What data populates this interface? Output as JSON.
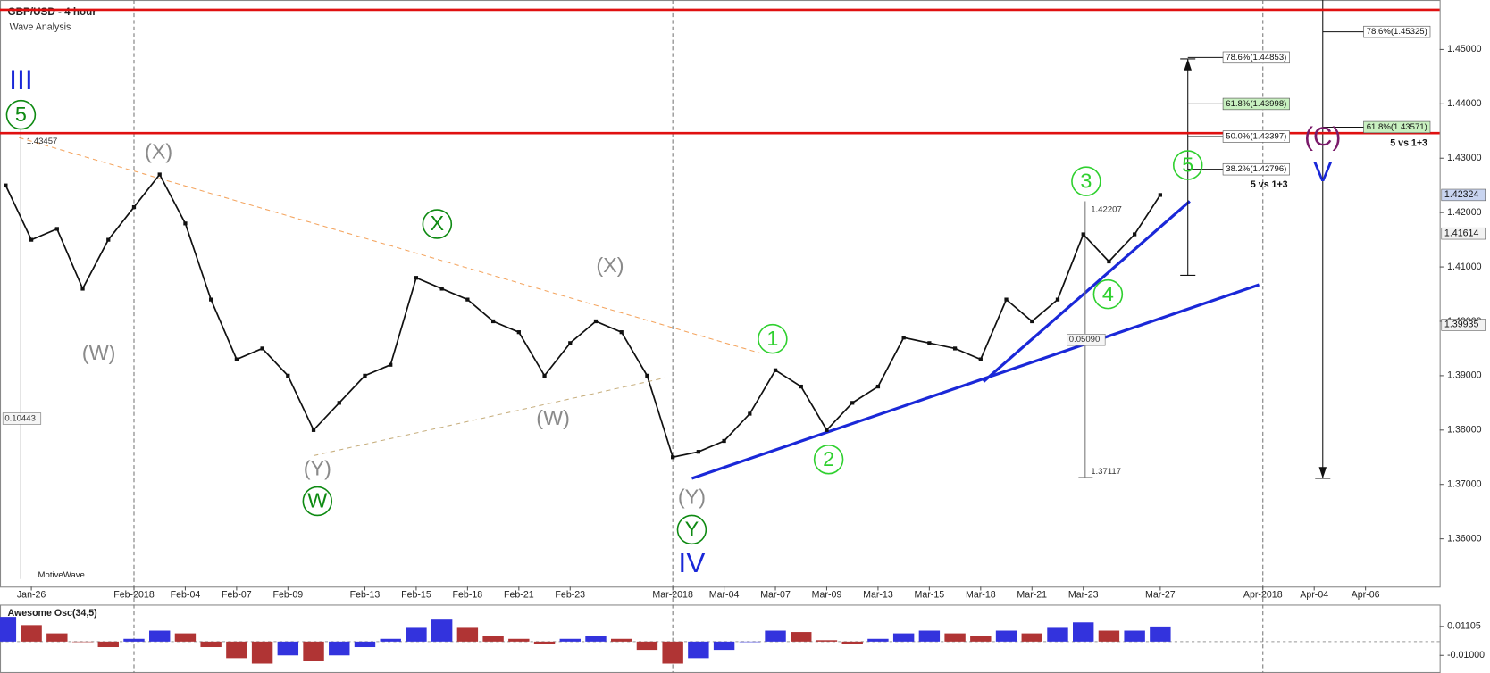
{
  "title": "GBP/USD - 4 hour",
  "subtitle": "Wave Analysis",
  "footer": "MotiveWave",
  "chart_data": {
    "type": "line",
    "color": "#111111",
    "categories": [
      null,
      "Jan-26",
      null,
      null,
      null,
      "Feb-2018",
      null,
      "Feb-04",
      null,
      "Feb-07",
      null,
      "Feb-09",
      null,
      null,
      "Feb-13",
      null,
      "Feb-15",
      null,
      "Feb-18",
      null,
      "Feb-21",
      null,
      "Feb-23",
      null,
      null,
      null,
      "Mar-2018",
      null,
      "Mar-04",
      null,
      "Mar-07",
      null,
      "Mar-09",
      null,
      "Mar-13",
      null,
      "Mar-15",
      null,
      "Mar-18",
      null,
      "Mar-21",
      null,
      "Mar-23",
      null,
      null,
      "Mar-27",
      null,
      null,
      null,
      "Apr-2018",
      null,
      "Apr-04",
      null,
      "Apr-06",
      null,
      null
    ],
    "values": [
      1.425,
      1.415,
      1.417,
      1.406,
      1.415,
      1.421,
      1.427,
      1.418,
      1.404,
      1.393,
      1.395,
      1.39,
      1.38,
      1.385,
      1.39,
      1.392,
      1.408,
      1.406,
      1.404,
      1.4,
      1.398,
      1.39,
      1.396,
      1.4,
      1.398,
      1.39,
      1.375,
      1.376,
      1.378,
      1.383,
      1.391,
      1.388,
      1.38,
      1.385,
      1.388,
      1.397,
      1.396,
      1.395,
      1.393,
      1.404,
      1.4,
      1.404,
      1.416,
      1.411,
      1.416,
      1.42324,
      null,
      null,
      null,
      null,
      null,
      null,
      null,
      null,
      null,
      null
    ],
    "ylim": [
      1.3512,
      1.4591
    ],
    "yticks": [
      {
        "value": 1.36,
        "label": "1.36000"
      },
      {
        "value": 1.37,
        "label": "1.37000"
      },
      {
        "value": 1.38,
        "label": "1.38000"
      },
      {
        "value": 1.39,
        "label": "1.39000"
      },
      {
        "value": 1.4,
        "label": "1.40000"
      },
      {
        "value": 1.41,
        "label": "1.41000"
      },
      {
        "value": 1.42,
        "label": "1.42000"
      },
      {
        "value": 1.43,
        "label": "1.43000"
      },
      {
        "value": 1.44,
        "label": "1.44000"
      },
      {
        "value": 1.45,
        "label": "1.45000"
      }
    ],
    "hlines": [
      {
        "value": 1.4573,
        "color": "#e01010"
      },
      {
        "value": 1.4346,
        "color": "#e01010"
      }
    ],
    "last_price": 1.42324,
    "price_markers": [
      1.41614,
      1.39935
    ],
    "fib_levels": [
      {
        "value": 1.44853,
        "label": "78.6%(1.44853)"
      },
      {
        "value": 1.43998,
        "label": "61.8%(1.43998)"
      },
      {
        "value": 1.43397,
        "label": "50.0%(1.43397)"
      },
      {
        "value": 1.42796,
        "label": "38.2%(1.42796)"
      }
    ],
    "fib_levels_2": [
      {
        "value": 1.45325,
        "label": "78.6%(1.45325)"
      },
      {
        "value": 1.43571,
        "label": "61.8%(1.43571)"
      }
    ],
    "notes": [
      "5 vs 1+3",
      "5 vs 1+3"
    ],
    "measures": [
      {
        "value": 1.43457,
        "label": "1.43457"
      },
      {
        "value": 0.10443,
        "label": "0.10443"
      },
      {
        "value": 1.42207,
        "label": "1.42207"
      },
      {
        "value": 0.0509,
        "label": "0.05090"
      },
      {
        "value": 1.37117,
        "label": "1.37117"
      }
    ],
    "wave_labels": [
      "III",
      "5",
      "(X)",
      "(W)",
      "X",
      "(X)",
      "(W)",
      "(Y)",
      "W",
      "(Y)",
      "Y",
      "IV",
      "1",
      "2",
      "3",
      "4",
      "5",
      "(C)",
      "V"
    ],
    "oscillator": {
      "title": "Awesome Osc(34,5)",
      "up_color": "#3333dd",
      "down_color": "#b03434",
      "values": [
        0.018,
        0.012,
        0.006,
        0.0,
        -0.004,
        0.002,
        0.008,
        0.006,
        -0.004,
        -0.012,
        -0.016,
        -0.01,
        -0.014,
        -0.01,
        -0.004,
        0.002,
        0.01,
        0.016,
        0.01,
        0.004,
        0.002,
        -0.002,
        0.002,
        0.004,
        0.002,
        -0.006,
        -0.016,
        -0.012,
        -0.006,
        0.0,
        0.008,
        0.007,
        0.001,
        -0.002,
        0.002,
        0.006,
        0.008,
        0.006,
        0.004,
        0.008,
        0.006,
        0.01,
        0.014,
        0.008,
        0.008,
        0.011,
        null,
        null,
        null,
        null,
        null,
        null,
        null,
        null,
        null,
        null
      ],
      "ylim": [
        -0.0228,
        0.0248
      ],
      "yticks": [
        0.01105,
        {
          "value": -0.01,
          "label": "-0.01000"
        }
      ]
    }
  }
}
